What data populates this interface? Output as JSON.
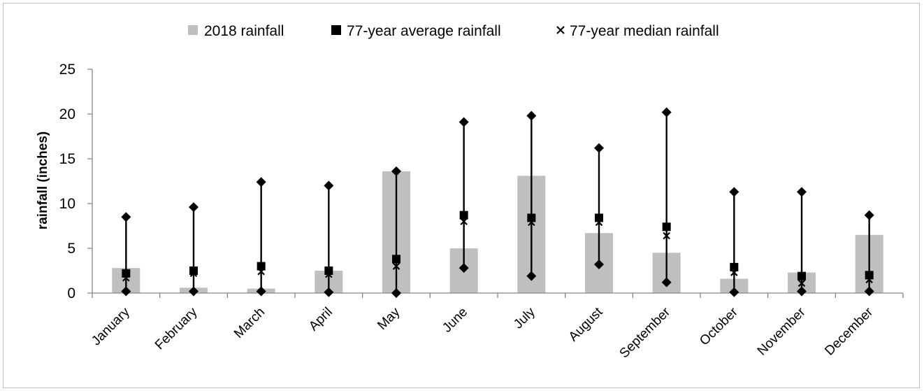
{
  "chart_data": {
    "type": "bar",
    "ylabel": "rainfall (inches)",
    "ylim": [
      0,
      25
    ],
    "yticks": [
      0,
      5,
      10,
      15,
      20,
      25
    ],
    "ytick_labels": [
      "0",
      "5",
      "10",
      "15",
      "20",
      "25"
    ],
    "grid": false,
    "legend_position": "top-center",
    "categories": [
      "January",
      "February",
      "March",
      "April",
      "May",
      "June",
      "July",
      "August",
      "September",
      "October",
      "November",
      "December"
    ],
    "series": [
      {
        "name": "2018 rainfall",
        "kind": "bar",
        "color": "#bfbfbf",
        "values": [
          2.8,
          0.6,
          0.5,
          2.5,
          13.6,
          5.0,
          13.1,
          6.7,
          4.5,
          1.6,
          2.3,
          6.5
        ]
      },
      {
        "name": "77-year average rainfall",
        "kind": "square-marker",
        "color": "#000000",
        "values": [
          2.2,
          2.5,
          3.0,
          2.5,
          3.8,
          8.7,
          8.4,
          8.4,
          7.4,
          2.9,
          1.9,
          2.0
        ]
      },
      {
        "name": "77-year median rainfall",
        "kind": "x-marker",
        "color": "#000000",
        "values": [
          1.7,
          2.2,
          2.4,
          2.1,
          3.0,
          8.0,
          7.9,
          7.9,
          6.4,
          2.3,
          1.1,
          1.5
        ]
      }
    ],
    "range": {
      "kind": "diamond-whisker",
      "color": "#000000",
      "min": [
        0.2,
        0.2,
        0.2,
        0.1,
        0.0,
        2.8,
        1.9,
        3.2,
        1.2,
        0.1,
        0.2,
        0.2
      ],
      "max": [
        8.5,
        9.6,
        12.4,
        12.0,
        13.6,
        19.1,
        19.8,
        16.2,
        20.2,
        11.3,
        11.3,
        8.7
      ]
    }
  }
}
